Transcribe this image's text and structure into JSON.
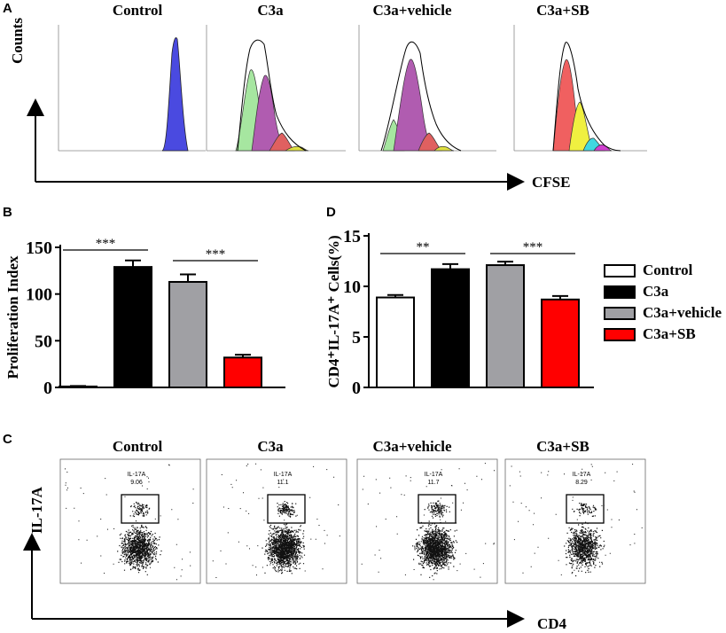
{
  "panel_letters": {
    "a": "A",
    "b": "B",
    "c": "C",
    "d": "D"
  },
  "groups": [
    "Control",
    "C3a",
    "C3a+vehicle",
    "C3a+SB"
  ],
  "group_colors": {
    "Control": "#ffffff",
    "C3a": "#000000",
    "C3a+vehicle": "#a0a0a4",
    "C3a+SB": "#ff0000"
  },
  "panel_a": {
    "y_axis_label": "Counts",
    "x_axis_label": "CFSE"
  },
  "panel_c": {
    "y_axis_label": "IL-17A",
    "x_axis_label": "CD4",
    "gate_name": "IL-17A",
    "gate_values": [
      "9.06",
      "11.1",
      "11.7",
      "8.29"
    ]
  },
  "chart_data": [
    {
      "panel": "B",
      "type": "bar",
      "categories": [
        "Control",
        "C3a",
        "C3a+vehicle",
        "C3a+SB"
      ],
      "values": [
        1,
        129,
        113,
        32
      ],
      "errors": [
        0.5,
        7,
        8,
        3
      ],
      "ylabel": "Proliferation Index",
      "ylim": [
        0,
        150
      ],
      "yticks": [
        0,
        50,
        100,
        150
      ],
      "significance": [
        {
          "between": [
            "Control",
            "C3a"
          ],
          "label": "***"
        },
        {
          "between": [
            "C3a+vehicle",
            "C3a+SB"
          ],
          "label": "***"
        }
      ]
    },
    {
      "panel": "D",
      "type": "bar",
      "categories": [
        "Control",
        "C3a",
        "C3a+vehicle",
        "C3a+SB"
      ],
      "values": [
        8.9,
        11.7,
        12.1,
        8.7
      ],
      "errors": [
        0.25,
        0.5,
        0.35,
        0.35
      ],
      "ylabel": "CD4⁺IL-17A⁺ Cells(%)",
      "ylim": [
        0,
        15
      ],
      "yticks": [
        0,
        5,
        10,
        15
      ],
      "significance": [
        {
          "between": [
            "Control",
            "C3a"
          ],
          "label": "**"
        },
        {
          "between": [
            "C3a+vehicle",
            "C3a+SB"
          ],
          "label": "***"
        }
      ],
      "legend": [
        "Control",
        "C3a",
        "C3a+vehicle",
        "C3a+SB"
      ]
    }
  ]
}
